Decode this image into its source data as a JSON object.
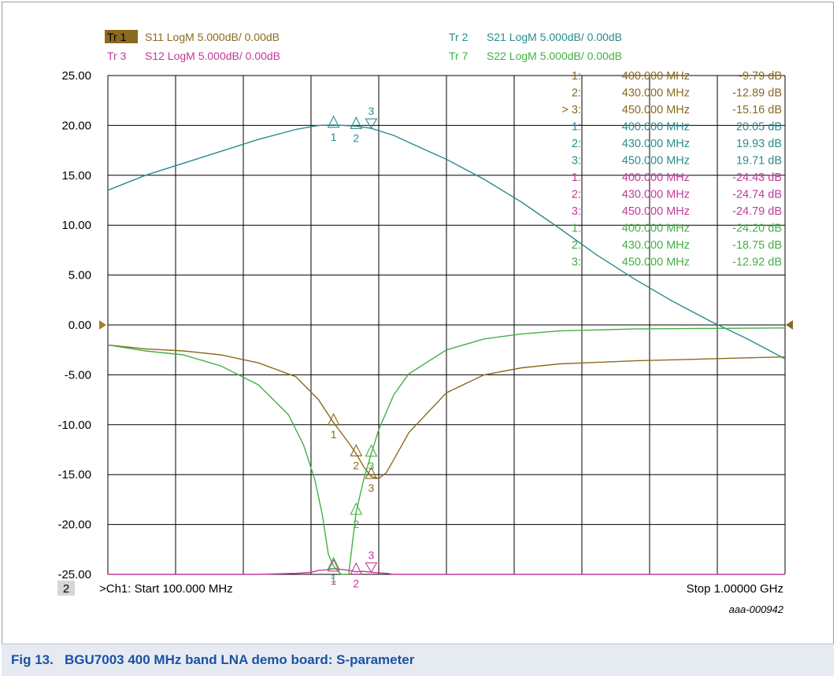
{
  "caption": {
    "text": "Fig 13.   BGU7003 400 MHz band LNA demo board: S-parameter"
  },
  "watermark": "aaa-000942",
  "channel_badge": "2",
  "colors": {
    "s11": "#8b6a1e",
    "s21": "#2a8c8c",
    "s12": "#c23a9b",
    "s22": "#44b044",
    "grid": "#000000",
    "caption": "#1a52a3"
  },
  "trace_headers": [
    {
      "id": "tr1",
      "tag": "Tr  1",
      "desc": "S11 LogM 5.000dB/  0.00dB",
      "color": "#8b6a1e",
      "active": true
    },
    {
      "id": "tr2",
      "tag": "Tr  2",
      "desc": "S21 LogM 5.000dB/  0.00dB",
      "color": "#2a8c8c",
      "active": false
    },
    {
      "id": "tr3",
      "tag": "Tr  3",
      "desc": "S12 LogM 5.000dB/  0.00dB",
      "color": "#c23a9b",
      "active": false
    },
    {
      "id": "tr7",
      "tag": "Tr  7",
      "desc": "S22 LogM 5.000dB/  0.00dB",
      "color": "#44b044",
      "active": false
    }
  ],
  "marker_table": [
    {
      "trace": "s11",
      "rows": [
        {
          "num": "1:",
          "freq": "400.000 MHz",
          "val": "-9.79 dB"
        },
        {
          "num": "2:",
          "freq": "430.000 MHz",
          "val": "-12.89 dB"
        },
        {
          "num": "> 3:",
          "freq": "450.000 MHz",
          "val": "-15.16 dB"
        }
      ]
    },
    {
      "trace": "s21",
      "rows": [
        {
          "num": "1:",
          "freq": "400.000 MHz",
          "val": "20.05 dB"
        },
        {
          "num": "2:",
          "freq": "430.000 MHz",
          "val": "19.93 dB"
        },
        {
          "num": "3:",
          "freq": "450.000 MHz",
          "val": "19.71 dB"
        }
      ]
    },
    {
      "trace": "s12",
      "rows": [
        {
          "num": "1:",
          "freq": "400.000 MHz",
          "val": "-24.43 dB"
        },
        {
          "num": "2:",
          "freq": "430.000 MHz",
          "val": "-24.74 dB"
        },
        {
          "num": "3:",
          "freq": "450.000 MHz",
          "val": "-24.79 dB"
        }
      ]
    },
    {
      "trace": "s22",
      "rows": [
        {
          "num": "1:",
          "freq": "400.000 MHz",
          "val": "-24.20 dB"
        },
        {
          "num": "2:",
          "freq": "430.000 MHz",
          "val": "-18.75 dB"
        },
        {
          "num": "3:",
          "freq": "450.000 MHz",
          "val": "-12.92 dB"
        }
      ]
    }
  ],
  "footer": {
    "start": ">Ch1: Start  100.000 MHz",
    "stop": "Stop  1.00000 GHz"
  },
  "chart_data": {
    "type": "line",
    "title": "",
    "xlabel": "",
    "ylabel": "",
    "x_unit": "MHz",
    "xlim": [
      100,
      1000
    ],
    "ylim": [
      -25,
      25
    ],
    "y_ticks": [
      25,
      20,
      15,
      10,
      5,
      0,
      -5,
      -10,
      -15,
      -20,
      -25
    ],
    "y_tick_labels": [
      "25.00",
      "20.00",
      "15.00",
      "10.00",
      "5.00",
      "0.00",
      "-5.00",
      "-10.00",
      "-15.00",
      "-20.00",
      "-25.00"
    ],
    "x_divisions": 10,
    "grid": true,
    "series": [
      {
        "name": "S11",
        "key": "s11",
        "x": [
          100,
          150,
          200,
          250,
          300,
          350,
          380,
          400,
          420,
          430,
          440,
          450,
          460,
          470,
          480,
          500,
          550,
          600,
          650,
          700,
          800,
          900,
          1000
        ],
        "y": [
          -2.0,
          -2.4,
          -2.6,
          -3.0,
          -3.8,
          -5.2,
          -7.5,
          -9.8,
          -11.8,
          -12.9,
          -14.2,
          -15.2,
          -15.4,
          -14.8,
          -13.5,
          -10.8,
          -6.8,
          -5.0,
          -4.3,
          -3.9,
          -3.6,
          -3.4,
          -3.2
        ]
      },
      {
        "name": "S21",
        "key": "s21",
        "x": [
          100,
          150,
          200,
          250,
          300,
          350,
          380,
          400,
          430,
          450,
          480,
          500,
          550,
          600,
          650,
          700,
          750,
          800,
          850,
          900,
          950,
          1000
        ],
        "y": [
          13.5,
          15.0,
          16.2,
          17.4,
          18.6,
          19.6,
          20.0,
          20.05,
          19.93,
          19.71,
          19.0,
          18.3,
          16.6,
          14.6,
          12.3,
          9.7,
          7.0,
          4.6,
          2.4,
          0.4,
          -1.4,
          -3.4
        ]
      },
      {
        "name": "S12",
        "key": "s12",
        "x": [
          100,
          300,
          350,
          370,
          380,
          390,
          400,
          410,
          420,
          430,
          440,
          450,
          460,
          470,
          480,
          500,
          1000
        ],
        "y": [
          -25.0,
          -25.0,
          -24.9,
          -24.8,
          -24.6,
          -24.55,
          -24.43,
          -24.5,
          -24.6,
          -24.74,
          -24.7,
          -24.79,
          -24.85,
          -24.9,
          -25.0,
          -25.0,
          -25.0
        ]
      },
      {
        "name": "S22",
        "key": "s22",
        "x": [
          100,
          150,
          200,
          250,
          300,
          340,
          360,
          375,
          385,
          393,
          400,
          410,
          420,
          430,
          440,
          450,
          460,
          480,
          500,
          550,
          600,
          650,
          700,
          800,
          900,
          1000
        ],
        "y": [
          -2.0,
          -2.6,
          -3.0,
          -4.1,
          -6.0,
          -9.0,
          -12.0,
          -15.5,
          -19.0,
          -23.0,
          -24.2,
          -25.0,
          -25.0,
          -18.75,
          -15.5,
          -12.92,
          -10.5,
          -7.0,
          -4.9,
          -2.5,
          -1.4,
          -0.9,
          -0.6,
          -0.4,
          -0.35,
          -0.3
        ]
      }
    ],
    "markers": [
      {
        "series": "s11",
        "labels": [
          "1",
          "2",
          "3"
        ],
        "x": [
          400,
          430,
          450
        ],
        "y": [
          -9.79,
          -12.89,
          -15.16
        ]
      },
      {
        "series": "s21",
        "labels": [
          "1",
          "2",
          "3"
        ],
        "x": [
          400,
          430,
          450
        ],
        "y": [
          20.05,
          19.93,
          19.71
        ]
      },
      {
        "series": "s12",
        "labels": [
          "1",
          "2",
          "3"
        ],
        "x": [
          400,
          430,
          450
        ],
        "y": [
          -24.43,
          -24.74,
          -24.79
        ]
      },
      {
        "series": "s22",
        "labels": [
          "1",
          "2",
          "3"
        ],
        "x": [
          400,
          430,
          450
        ],
        "y": [
          -24.2,
          -18.75,
          -12.92
        ]
      }
    ]
  }
}
